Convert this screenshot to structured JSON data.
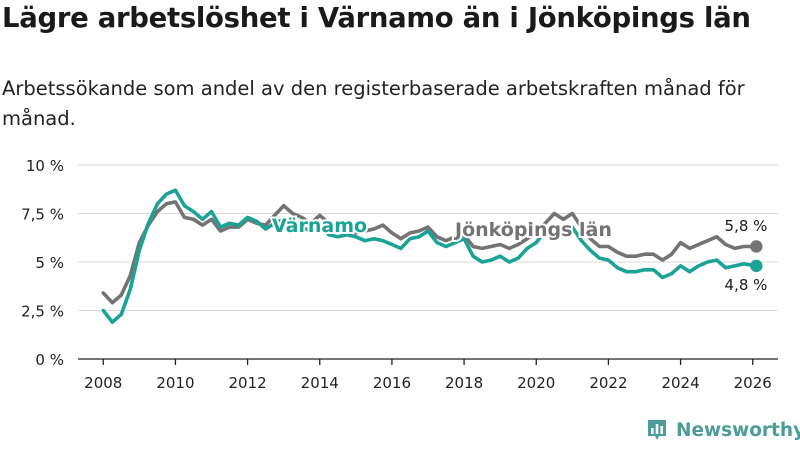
{
  "title": "Lägre arbetslöshet i Värnamo än i Jönköpings län",
  "subtitle": "Arbetssökande som andel av den registerbaserade arbetskraften månad för månad.",
  "brand": {
    "name": "Newsworthy",
    "icon": "bar-chart-logo-icon"
  },
  "colors": {
    "varnamo": "#1aa396",
    "lan": "#737373",
    "grid": "#d9d9d9",
    "axis": "#222222"
  },
  "chart_data": {
    "type": "line",
    "title": "Lägre arbetslöshet i Värnamo än i Jönköpings län",
    "xlabel": "",
    "ylabel": "",
    "xlim": [
      2007.3,
      2026.7
    ],
    "ylim": [
      0,
      10
    ],
    "yticks": [
      0,
      2.5,
      5,
      7.5,
      10
    ],
    "ytick_labels": [
      "0 %",
      "2,5 %",
      "5 %",
      "7,5 %",
      "10 %"
    ],
    "xticks": [
      2008,
      2010,
      2012,
      2014,
      2016,
      2018,
      2020,
      2022,
      2024,
      2026
    ],
    "xtick_labels": [
      "2008",
      "2010",
      "2012",
      "2014",
      "2016",
      "2018",
      "2020",
      "2022",
      "2024",
      "2026"
    ],
    "grid": true,
    "series": [
      {
        "name": "Jönköpings län",
        "label": "Jönköpings län",
        "end_label": "5,8 %",
        "x": [
          2008.0,
          2008.25,
          2008.5,
          2008.75,
          2009.0,
          2009.25,
          2009.5,
          2009.75,
          2010.0,
          2010.25,
          2010.5,
          2010.75,
          2011.0,
          2011.25,
          2011.5,
          2011.75,
          2012.0,
          2012.25,
          2012.5,
          2012.75,
          2013.0,
          2013.25,
          2013.5,
          2013.75,
          2014.0,
          2014.25,
          2014.5,
          2014.75,
          2015.0,
          2015.25,
          2015.5,
          2015.75,
          2016.0,
          2016.25,
          2016.5,
          2016.75,
          2017.0,
          2017.25,
          2017.5,
          2017.75,
          2018.0,
          2018.25,
          2018.5,
          2018.75,
          2019.0,
          2019.25,
          2019.5,
          2019.75,
          2020.0,
          2020.25,
          2020.5,
          2020.75,
          2021.0,
          2021.25,
          2021.5,
          2021.75,
          2022.0,
          2022.25,
          2022.5,
          2022.75,
          2023.0,
          2023.25,
          2023.5,
          2023.75,
          2024.0,
          2024.25,
          2024.5,
          2024.75,
          2025.0,
          2025.25,
          2025.5,
          2025.75,
          2026.1
        ],
        "values": [
          3.4,
          2.9,
          3.3,
          4.3,
          6.0,
          6.9,
          7.6,
          8.0,
          8.1,
          7.3,
          7.2,
          6.9,
          7.2,
          6.6,
          6.8,
          6.8,
          7.2,
          7.0,
          6.9,
          7.4,
          7.9,
          7.5,
          7.3,
          7.0,
          7.4,
          7.0,
          6.9,
          6.6,
          6.5,
          6.6,
          6.7,
          6.9,
          6.5,
          6.2,
          6.5,
          6.6,
          6.8,
          6.3,
          6.1,
          6.3,
          6.4,
          5.8,
          5.7,
          5.8,
          5.9,
          5.7,
          5.9,
          6.2,
          6.6,
          7.0,
          7.5,
          7.2,
          7.5,
          6.8,
          6.2,
          5.8,
          5.8,
          5.5,
          5.3,
          5.3,
          5.4,
          5.4,
          5.1,
          5.4,
          6.0,
          5.7,
          5.9,
          6.1,
          6.3,
          5.9,
          5.7,
          5.8,
          5.8
        ]
      },
      {
        "name": "Värnamo",
        "label": "Värnamo",
        "end_label": "4,8 %",
        "x": [
          2008.0,
          2008.25,
          2008.5,
          2008.75,
          2009.0,
          2009.25,
          2009.5,
          2009.75,
          2010.0,
          2010.25,
          2010.5,
          2010.75,
          2011.0,
          2011.25,
          2011.5,
          2011.75,
          2012.0,
          2012.25,
          2012.5,
          2012.75,
          2013.0,
          2013.25,
          2013.5,
          2013.75,
          2014.0,
          2014.25,
          2014.5,
          2014.75,
          2015.0,
          2015.25,
          2015.5,
          2015.75,
          2016.0,
          2016.25,
          2016.5,
          2016.75,
          2017.0,
          2017.25,
          2017.5,
          2017.75,
          2018.0,
          2018.25,
          2018.5,
          2018.75,
          2019.0,
          2019.25,
          2019.5,
          2019.75,
          2020.0,
          2020.25,
          2020.5,
          2020.75,
          2021.0,
          2021.25,
          2021.5,
          2021.75,
          2022.0,
          2022.25,
          2022.5,
          2022.75,
          2023.0,
          2023.25,
          2023.5,
          2023.75,
          2024.0,
          2024.25,
          2024.5,
          2024.75,
          2025.0,
          2025.25,
          2025.5,
          2025.75,
          2026.1
        ],
        "values": [
          2.5,
          1.9,
          2.3,
          3.6,
          5.6,
          7.0,
          8.0,
          8.5,
          8.7,
          7.9,
          7.6,
          7.2,
          7.6,
          6.8,
          7.0,
          6.9,
          7.3,
          7.1,
          6.7,
          7.0,
          7.2,
          6.9,
          6.8,
          6.6,
          6.9,
          6.4,
          6.3,
          6.4,
          6.3,
          6.1,
          6.2,
          6.1,
          5.9,
          5.7,
          6.2,
          6.3,
          6.6,
          6.0,
          5.8,
          6.0,
          6.2,
          5.3,
          5.0,
          5.1,
          5.3,
          5.0,
          5.2,
          5.7,
          6.0,
          6.6,
          6.9,
          6.6,
          6.8,
          6.1,
          5.6,
          5.2,
          5.1,
          4.7,
          4.5,
          4.5,
          4.6,
          4.6,
          4.2,
          4.4,
          4.8,
          4.5,
          4.8,
          5.0,
          5.1,
          4.7,
          4.8,
          4.9,
          4.8
        ]
      }
    ]
  }
}
